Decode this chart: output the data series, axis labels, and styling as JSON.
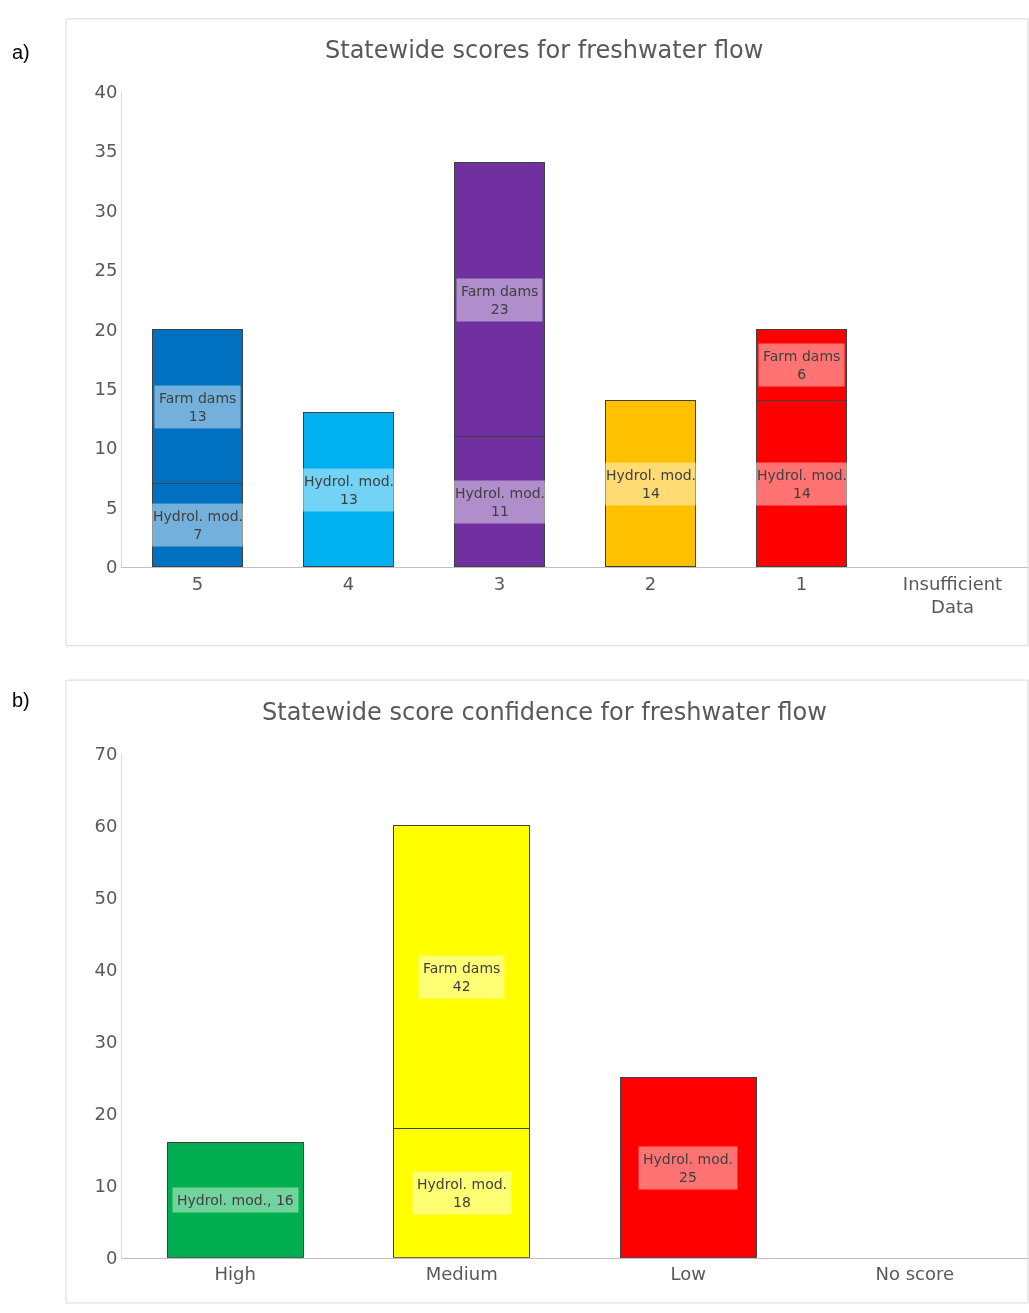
{
  "chart_data": [
    {
      "type": "bar",
      "title": "Statewide scores for freshwater flow",
      "stacked": true,
      "categories": [
        "5",
        "4",
        "3",
        "2",
        "1",
        "Insufficient Data"
      ],
      "ylim": [
        0,
        40
      ],
      "yticks": [
        0,
        5,
        10,
        15,
        20,
        25,
        30,
        35,
        40
      ],
      "annotations": [
        "a)"
      ],
      "series": [
        {
          "colors": [
            "#0070c0",
            "#00b0f0",
            "#7030a0",
            "#ffc000",
            "#ff0000",
            null
          ],
          "values": [
            7,
            13,
            11,
            14,
            14,
            null
          ],
          "value_labels": [
            "Hydrol. mod.\n7",
            "Hydrol. mod.\n13",
            "Hydrol. mod.\n11",
            "Hydrol. mod.\n14",
            "Hydrol. mod.\n14",
            null
          ]
        },
        {
          "colors": [
            "#0070c0",
            null,
            "#7030a0",
            null,
            "#ff0000",
            null
          ],
          "values": [
            13,
            null,
            23,
            null,
            6,
            null
          ],
          "value_labels": [
            "Farm dams\n13",
            null,
            "Farm dams\n23",
            null,
            "Farm dams\n6",
            null
          ]
        }
      ]
    },
    {
      "type": "bar",
      "title": "Statewide score confidence for freshwater flow",
      "stacked": true,
      "categories": [
        "High",
        "Medium",
        "Low",
        "No score"
      ],
      "ylim": [
        0,
        70
      ],
      "yticks": [
        0,
        10,
        20,
        30,
        40,
        50,
        60,
        70
      ],
      "annotations": [
        "b)"
      ],
      "series": [
        {
          "colors": [
            "#00b050",
            "#ffff00",
            "#ff0000",
            null
          ],
          "values": [
            16,
            18,
            25,
            null
          ],
          "value_labels": [
            "Hydrol. mod., 16",
            "Hydrol. mod.\n18",
            "Hydrol. mod.\n25",
            null
          ]
        },
        {
          "colors": [
            null,
            "#ffff00",
            null,
            null
          ],
          "values": [
            null,
            42,
            null,
            null
          ],
          "value_labels": [
            null,
            "Farm dams\n42",
            null,
            null
          ]
        }
      ]
    }
  ]
}
